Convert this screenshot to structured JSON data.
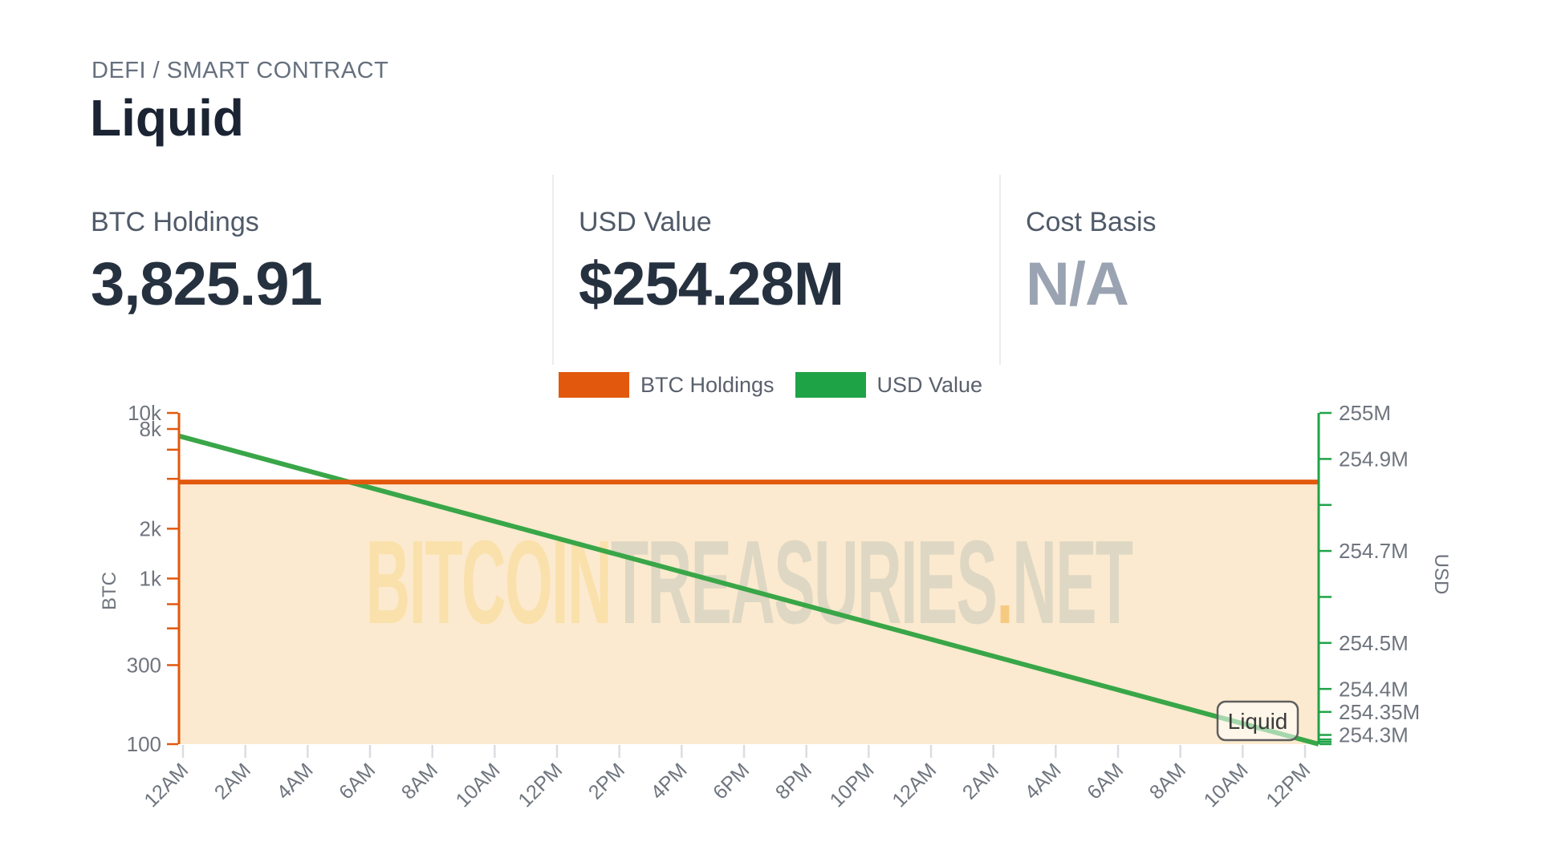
{
  "header": {
    "breadcrumb": "DEFI / SMART CONTRACT",
    "title": "Liquid"
  },
  "stats": [
    {
      "label": "BTC Holdings",
      "value": "3,825.91"
    },
    {
      "label": "USD Value",
      "value": "$254.28M"
    },
    {
      "label": "Cost Basis",
      "value": "N/A"
    }
  ],
  "legend": [
    {
      "label": "BTC Holdings",
      "color": "#E2590D"
    },
    {
      "label": "USD Value",
      "color": "#1FA347"
    }
  ],
  "chart_data": {
    "type": "line",
    "title": "",
    "x_axis": {
      "tick_labels": [
        "12AM",
        "2AM",
        "4AM",
        "6AM",
        "8AM",
        "10AM",
        "12PM",
        "2PM",
        "4PM",
        "6PM",
        "8PM",
        "10PM",
        "12AM",
        "2AM",
        "4AM",
        "6AM",
        "8AM",
        "10AM",
        "12PM"
      ],
      "tick_interval": "2h",
      "span_hours": 36.5
    },
    "left_axis": {
      "title": "BTC",
      "scale": "log",
      "range": [
        100,
        10000
      ],
      "color": "#E2590D",
      "ticks": [
        {
          "v": 10000,
          "label": "10k"
        },
        {
          "v": 8000,
          "label": "8k"
        },
        {
          "v": 6000,
          "label": ""
        },
        {
          "v": 4000,
          "label": ""
        },
        {
          "v": 2000,
          "label": "2k"
        },
        {
          "v": 1000,
          "label": "1k"
        },
        {
          "v": 700,
          "label": ""
        },
        {
          "v": 500,
          "label": ""
        },
        {
          "v": 300,
          "label": "300"
        },
        {
          "v": 100,
          "label": "100"
        }
      ]
    },
    "right_axis": {
      "title": "USD",
      "scale": "linear",
      "range_millions": [
        254.28,
        255.0
      ],
      "color": "#1FA347",
      "ticks": [
        {
          "v": 255.0,
          "label": "255M"
        },
        {
          "v": 254.9,
          "label": "254.9M"
        },
        {
          "v": 254.8,
          "label": ""
        },
        {
          "v": 254.7,
          "label": "254.7M"
        },
        {
          "v": 254.6,
          "label": ""
        },
        {
          "v": 254.5,
          "label": "254.5M"
        },
        {
          "v": 254.4,
          "label": "254.4M"
        },
        {
          "v": 254.35,
          "label": "254.35M"
        },
        {
          "v": 254.3,
          "label": "254.3M"
        },
        {
          "v": 254.29,
          "label": ""
        },
        {
          "v": 254.285,
          "label": ""
        },
        {
          "v": 254.28,
          "label": ""
        }
      ]
    },
    "series": [
      {
        "name": "BTC Holdings",
        "axis": "left",
        "style": "area-line",
        "color": "#E2590D",
        "fill": "#FBEACF",
        "x_fraction": [
          0,
          1
        ],
        "values": [
          3825.91,
          3825.91
        ]
      },
      {
        "name": "USD Value",
        "axis": "right",
        "style": "line",
        "color": "#39A648",
        "x_fraction": [
          0,
          1
        ],
        "values_millions": [
          254.95,
          254.28
        ]
      }
    ],
    "annotation": {
      "text": "Liquid",
      "border_color": "#5F5F5F",
      "text_color": "#3A3A3A"
    },
    "watermark": {
      "parts": [
        {
          "text": "BITCOIN",
          "color": "#FAE0AA"
        },
        {
          "text": "TREASURIES",
          "color": "#DED7C3"
        },
        {
          "text": ".",
          "color": "#F7CA82"
        },
        {
          "text": "NET",
          "color": "#DED7C3"
        }
      ]
    },
    "tick_label_color": "#6F757E",
    "x_tick_mark_color": "#DADDE1"
  }
}
